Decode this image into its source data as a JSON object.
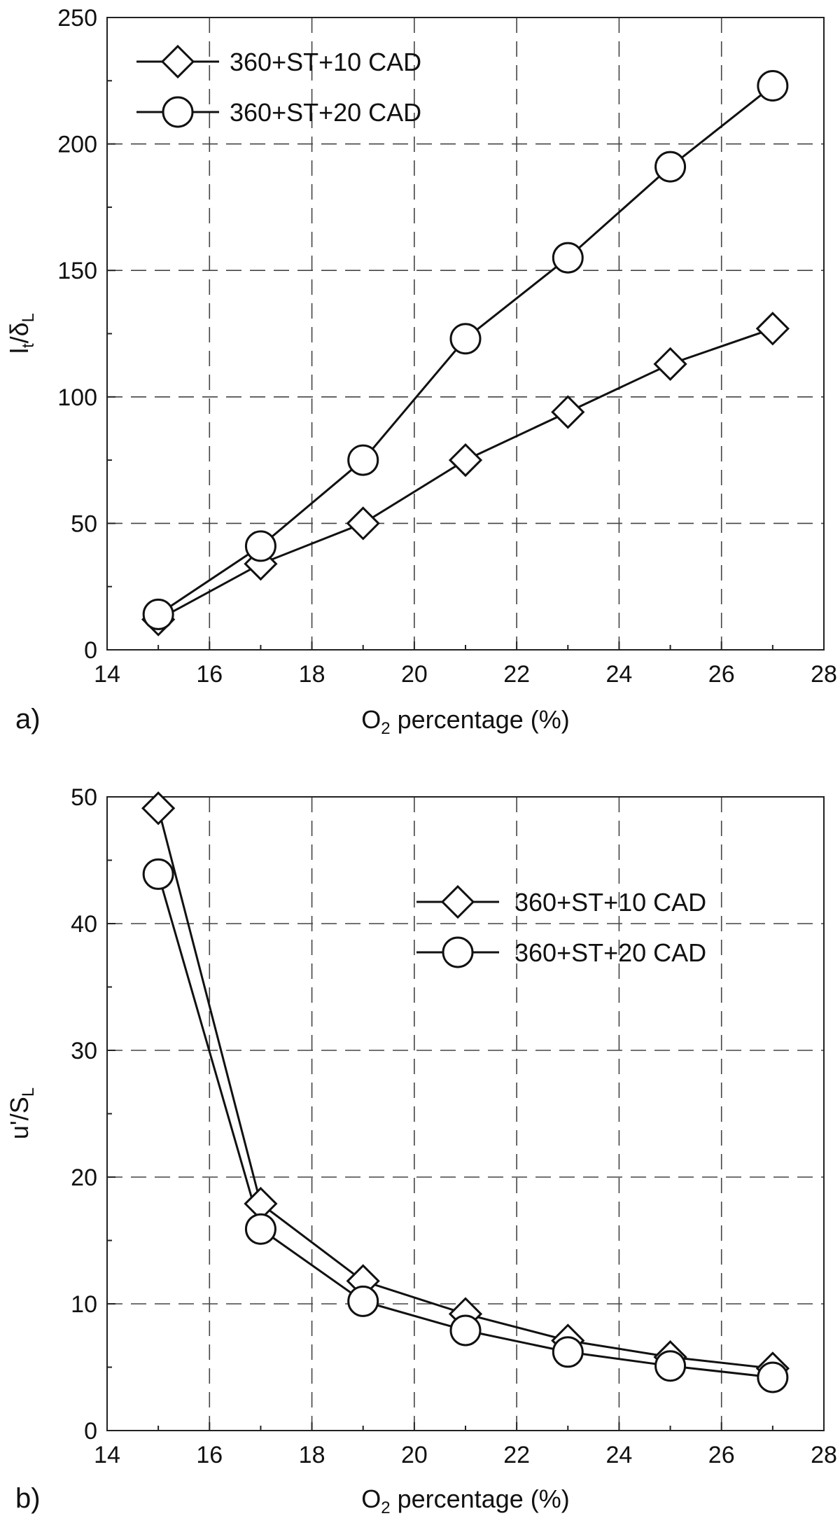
{
  "chart_data": [
    {
      "type": "line",
      "panel_label": "a)",
      "xlabel_main": "O",
      "xlabel_sub": "2",
      "xlabel_rest": " percentage (%)",
      "ylabel_1": "l",
      "ylabel_1_sub": "t",
      "ylabel_2": "/δ",
      "ylabel_2_sub": "L",
      "xlim": [
        14,
        28
      ],
      "ylim": [
        0,
        250
      ],
      "xticks": [
        14,
        16,
        18,
        20,
        22,
        24,
        26,
        28
      ],
      "yticks": [
        0,
        50,
        100,
        150,
        200,
        250
      ],
      "grid": true,
      "legend_position": "top-left",
      "series": [
        {
          "name": "360+ST+10 CAD",
          "marker": "diamond",
          "x": [
            15,
            17,
            19,
            21,
            23,
            25,
            27
          ],
          "y": [
            12,
            34,
            50,
            75,
            94,
            113,
            127
          ]
        },
        {
          "name": "360+ST+20 CAD",
          "marker": "circle",
          "x": [
            15,
            17,
            19,
            21,
            23,
            25,
            27
          ],
          "y": [
            14,
            41,
            75,
            123,
            155,
            191,
            223
          ]
        }
      ]
    },
    {
      "type": "line",
      "panel_label": "b)",
      "xlabel_main": "O",
      "xlabel_sub": "2",
      "xlabel_rest": " percentage (%)",
      "ylabel_1": "u'/S",
      "ylabel_1_sub": "L",
      "ylabel_2": "",
      "ylabel_2_sub": "",
      "xlim": [
        14,
        28
      ],
      "ylim": [
        0,
        50
      ],
      "xticks": [
        14,
        16,
        18,
        20,
        22,
        24,
        26,
        28
      ],
      "yticks": [
        0,
        10,
        20,
        30,
        40,
        50
      ],
      "grid": true,
      "legend_position": "upper-right",
      "series": [
        {
          "name": "360+ST+10 CAD",
          "marker": "diamond",
          "x": [
            15,
            17,
            19,
            21,
            23,
            25,
            27
          ],
          "y": [
            49.1,
            17.9,
            11.8,
            9.2,
            7.1,
            5.8,
            4.9
          ]
        },
        {
          "name": "360+ST+20 CAD",
          "marker": "circle",
          "x": [
            15,
            17,
            19,
            21,
            23,
            25,
            27
          ],
          "y": [
            43.9,
            15.9,
            10.2,
            7.9,
            6.2,
            5.1,
            4.2
          ]
        }
      ]
    }
  ]
}
